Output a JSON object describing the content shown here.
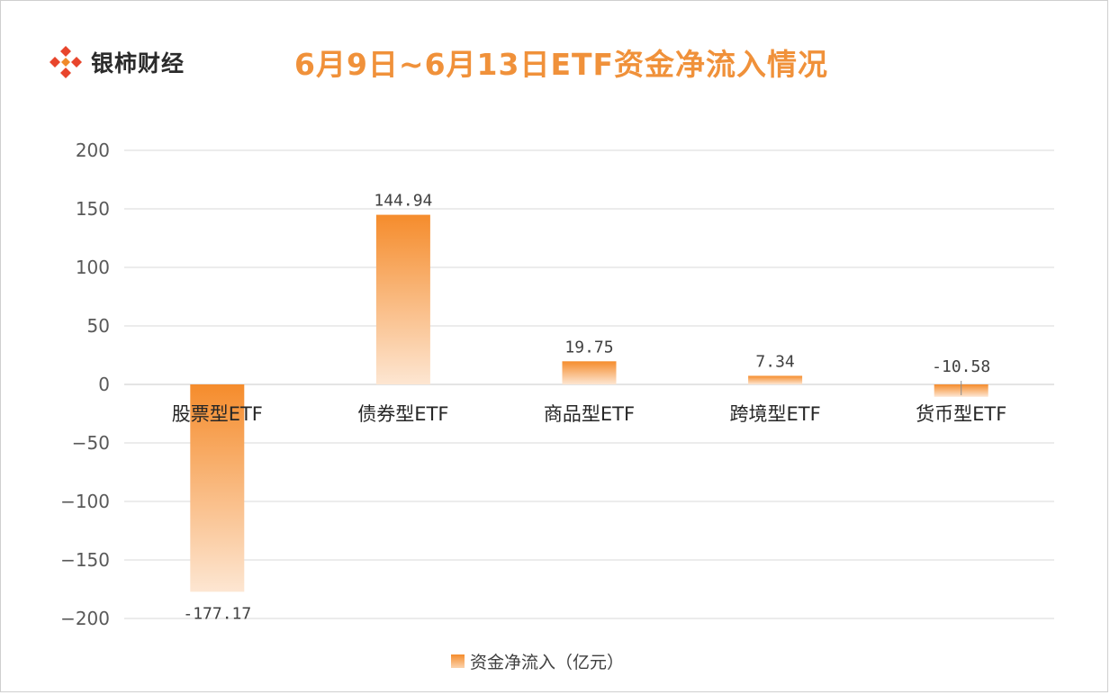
{
  "brand": {
    "name": "银柿财经",
    "icon": "diamond-logo-icon",
    "color": "#e8452c"
  },
  "chart_data": {
    "type": "bar",
    "title": "6月9日~6月13日ETF资金净流入情况",
    "categories": [
      "股票型ETF",
      "债券型ETF",
      "商品型ETF",
      "跨境型ETF",
      "货币型ETF"
    ],
    "series": [
      {
        "name": "资金净流入（亿元）",
        "values": [
          -177.17,
          144.94,
          19.75,
          7.34,
          -10.58
        ]
      }
    ],
    "data_labels": [
      "-177.17",
      "144.94",
      "19.75",
      "7.34",
      "-10.58"
    ],
    "ylim": [
      -200,
      200
    ],
    "yticks": [
      200,
      150,
      100,
      50,
      0,
      -50,
      -100,
      -150,
      -200
    ],
    "ytick_labels": [
      "200",
      "150",
      "100",
      "50",
      "0",
      "−50",
      "−100",
      "−150",
      "−200"
    ],
    "grid": true,
    "legend_position": "bottom",
    "bar_color_top": "#f58c2c",
    "bar_color_bottom": "#fde6d2",
    "title_color": "#f0913a"
  }
}
